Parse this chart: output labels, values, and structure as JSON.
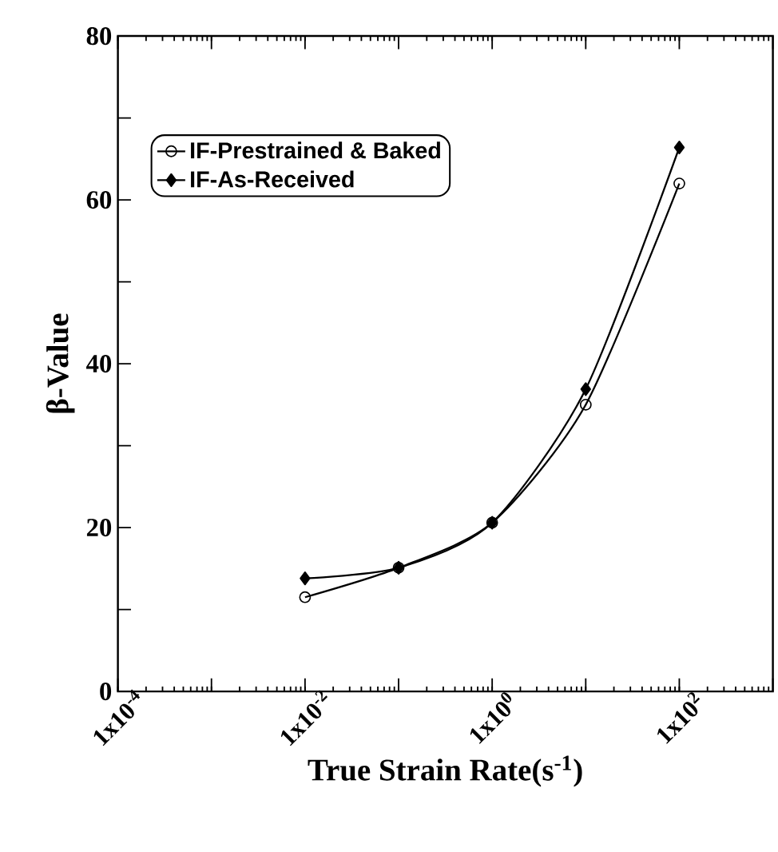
{
  "chart_data": {
    "type": "line",
    "xlabel": "True Strain Rate(s$^{-1}$)",
    "ylabel": "β-Value",
    "log": "x",
    "xlim": [
      0.0001,
      1000
    ],
    "ylim": [
      0,
      80
    ],
    "xticks": [
      {
        "value": 0.0001,
        "label": "1x10$^{-4}$"
      },
      {
        "value": 0.001,
        "label": null
      },
      {
        "value": 0.01,
        "label": "1x10$^{-2}$"
      },
      {
        "value": 0.1,
        "label": null
      },
      {
        "value": 1,
        "label": "1x10$^{0}$"
      },
      {
        "value": 10,
        "label": null
      },
      {
        "value": 100,
        "label": "1x10$^{2}$"
      },
      {
        "value": 1000,
        "label": null
      }
    ],
    "yticks": [
      0,
      {
        "value": 10,
        "label": null
      },
      20,
      {
        "value": 30,
        "label": null
      },
      40,
      {
        "value": 50,
        "label": null
      },
      60,
      {
        "value": 70,
        "label": null
      },
      80
    ],
    "legend": "top left",
    "grid": false,
    "series": [
      {
        "name": "IF-Prestrained & Baked",
        "color": "#000000",
        "marker": "circle",
        "x": [
          0.01,
          0.1,
          1,
          10,
          100
        ],
        "values": [
          11.5,
          15.1,
          20.6,
          35,
          62
        ]
      },
      {
        "name": "IF-As-Received",
        "color": "#000000",
        "marker": "diamond",
        "x": [
          0.01,
          0.1,
          1,
          10,
          100
        ],
        "values": [
          13.8,
          15.1,
          20.6,
          36.9,
          66.4
        ]
      }
    ]
  }
}
